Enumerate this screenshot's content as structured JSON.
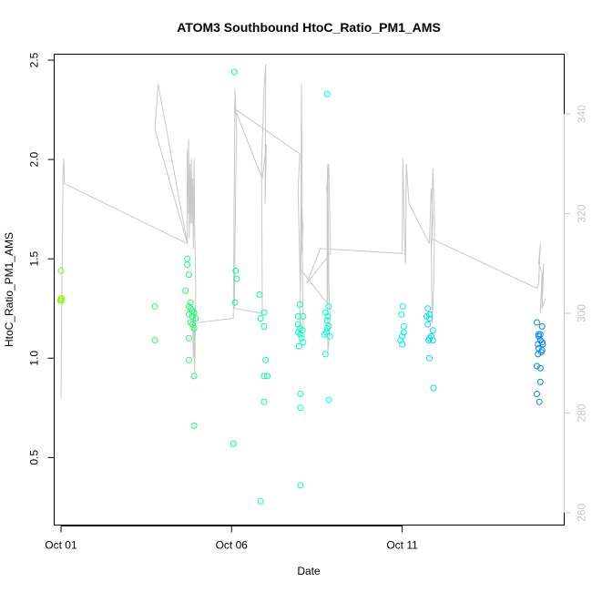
{
  "chart_data": {
    "type": "scatter",
    "title": "ATOM3 Southbound HtoC_Ratio_PM1_AMS",
    "xlabel": "Date",
    "ylabel": "HtoC_Ratio_PM1_AMS",
    "x_ticks": [
      "Oct 01",
      "Oct 06",
      "Oct 11"
    ],
    "x_tick_values": [
      1,
      6,
      11
    ],
    "xlim": [
      0.8,
      15.75
    ],
    "ylim": [
      0.16,
      2.53
    ],
    "y_ticks": [
      "0.5",
      "1.0",
      "1.5",
      "2.0",
      "2.5"
    ],
    "y_tick_values": [
      0.5,
      1.0,
      1.5,
      2.0,
      2.5
    ],
    "y2_ticks": [
      "260",
      "280",
      "300",
      "320",
      "340"
    ],
    "y2_tick_values": [
      260,
      280,
      300,
      320,
      340
    ],
    "y2lim": [
      257.5,
      352
    ],
    "grid": false,
    "point_color_scale": [
      "#80ff00",
      "#00ff80",
      "#00ffff",
      "#0080ff"
    ],
    "line_color": "#c8c8c8",
    "series": [
      {
        "marker": "open-circle",
        "points": [
          [
            1.0,
            1.44
          ],
          [
            1.0,
            1.3
          ],
          [
            1.01,
            1.29
          ],
          [
            0.98,
            1.29
          ],
          [
            1.02,
            1.3
          ],
          [
            3.75,
            1.26
          ],
          [
            3.75,
            1.09
          ],
          [
            4.7,
            1.5
          ],
          [
            4.7,
            1.47
          ],
          [
            4.75,
            1.42
          ],
          [
            4.65,
            1.34
          ],
          [
            4.8,
            1.28
          ],
          [
            4.75,
            1.26
          ],
          [
            4.8,
            1.25
          ],
          [
            4.85,
            1.24
          ],
          [
            4.9,
            1.23
          ],
          [
            4.75,
            1.22
          ],
          [
            4.85,
            1.21
          ],
          [
            4.95,
            1.2
          ],
          [
            4.8,
            1.18
          ],
          [
            4.85,
            1.17
          ],
          [
            4.9,
            1.15
          ],
          [
            4.75,
            1.1
          ],
          [
            4.75,
            0.99
          ],
          [
            4.9,
            0.91
          ],
          [
            4.9,
            0.66
          ],
          [
            6.08,
            2.44
          ],
          [
            6.12,
            1.44
          ],
          [
            6.15,
            1.4
          ],
          [
            6.1,
            1.28
          ],
          [
            6.05,
            0.57
          ],
          [
            6.82,
            1.32
          ],
          [
            6.95,
            1.23
          ],
          [
            6.85,
            1.2
          ],
          [
            6.95,
            1.16
          ],
          [
            7.0,
            0.99
          ],
          [
            6.95,
            0.91
          ],
          [
            7.05,
            0.91
          ],
          [
            6.95,
            0.78
          ],
          [
            6.85,
            0.28
          ],
          [
            8.0,
            1.27
          ],
          [
            7.95,
            1.21
          ],
          [
            8.1,
            1.21
          ],
          [
            7.95,
            1.17
          ],
          [
            8.0,
            1.15
          ],
          [
            8.08,
            1.14
          ],
          [
            7.95,
            1.13
          ],
          [
            8.02,
            1.12
          ],
          [
            8.05,
            1.1
          ],
          [
            8.1,
            1.08
          ],
          [
            7.98,
            1.06
          ],
          [
            8.02,
            0.82
          ],
          [
            8.02,
            0.75
          ],
          [
            8.02,
            0.36
          ],
          [
            8.8,
            2.33
          ],
          [
            8.85,
            1.26
          ],
          [
            8.75,
            1.23
          ],
          [
            8.82,
            1.21
          ],
          [
            8.8,
            1.19
          ],
          [
            8.85,
            1.16
          ],
          [
            8.8,
            1.15
          ],
          [
            8.78,
            1.13
          ],
          [
            8.72,
            1.12
          ],
          [
            8.88,
            1.11
          ],
          [
            8.75,
            1.02
          ],
          [
            8.85,
            0.79
          ],
          [
            11.02,
            1.26
          ],
          [
            10.98,
            1.22
          ],
          [
            11.05,
            1.16
          ],
          [
            11.05,
            1.13
          ],
          [
            11.0,
            1.11
          ],
          [
            10.95,
            1.09
          ],
          [
            11.0,
            1.07
          ],
          [
            11.75,
            1.25
          ],
          [
            11.8,
            1.22
          ],
          [
            11.72,
            1.21
          ],
          [
            11.8,
            1.2
          ],
          [
            11.75,
            1.17
          ],
          [
            11.9,
            1.14
          ],
          [
            11.85,
            1.11
          ],
          [
            11.8,
            1.1
          ],
          [
            11.78,
            1.09
          ],
          [
            11.9,
            1.09
          ],
          [
            11.8,
            1.0
          ],
          [
            11.92,
            0.85
          ],
          [
            14.95,
            1.18
          ],
          [
            15.1,
            1.16
          ],
          [
            15.0,
            1.12
          ],
          [
            15.05,
            1.12
          ],
          [
            15.0,
            1.11
          ],
          [
            15.05,
            1.09
          ],
          [
            15.1,
            1.08
          ],
          [
            14.98,
            1.07
          ],
          [
            15.12,
            1.07
          ],
          [
            15.0,
            1.05
          ],
          [
            15.1,
            1.04
          ],
          [
            15.08,
            1.03
          ],
          [
            14.98,
            1.02
          ],
          [
            14.95,
            0.96
          ],
          [
            15.05,
            0.95
          ],
          [
            15.05,
            0.88
          ],
          [
            14.95,
            0.82
          ],
          [
            15.02,
            0.78
          ]
        ]
      },
      {
        "axis": "right",
        "line": [
          [
            1.0,
            283
          ],
          [
            1.02,
            299
          ],
          [
            1.06,
            328
          ],
          [
            1.08,
            331
          ],
          [
            1.1,
            326
          ],
          [
            4.7,
            314
          ],
          [
            3.75,
            337
          ],
          [
            3.85,
            346
          ],
          [
            4.7,
            314
          ],
          [
            4.7,
            333
          ],
          [
            4.72,
            320
          ],
          [
            4.74,
            335
          ],
          [
            4.76,
            315
          ],
          [
            4.78,
            330
          ],
          [
            4.8,
            318
          ],
          [
            4.82,
            331
          ],
          [
            4.84,
            318
          ],
          [
            4.86,
            327
          ],
          [
            4.88,
            313
          ],
          [
            4.9,
            331
          ],
          [
            4.92,
            316
          ],
          [
            4.95,
            305
          ],
          [
            4.92,
            288
          ],
          [
            4.9,
            301
          ],
          [
            4.88,
            291
          ],
          [
            4.86,
            298
          ],
          [
            6.05,
            299
          ],
          [
            6.1,
            345
          ],
          [
            6.15,
            336
          ],
          [
            6.12,
            327
          ],
          [
            6.08,
            301
          ],
          [
            6.9,
            300
          ],
          [
            6.88,
            330
          ],
          [
            6.92,
            338
          ],
          [
            6.95,
            345
          ],
          [
            7.0,
            350
          ],
          [
            6.98,
            322
          ],
          [
            7.02,
            334
          ],
          [
            6.9,
            327
          ],
          [
            6.1,
            341
          ],
          [
            8.0,
            332
          ],
          [
            7.95,
            325
          ],
          [
            8.0,
            309
          ],
          [
            8.02,
            303
          ],
          [
            8.05,
            346
          ],
          [
            8.08,
            308
          ],
          [
            8.1,
            297
          ],
          [
            8.0,
            296
          ],
          [
            8.05,
            321
          ],
          [
            8.1,
            317
          ],
          [
            8.0,
            309
          ],
          [
            8.8,
            302
          ],
          [
            8.8,
            326
          ],
          [
            8.82,
            330
          ],
          [
            8.85,
            307
          ],
          [
            8.88,
            297
          ],
          [
            8.82,
            292
          ],
          [
            8.82,
            323
          ],
          [
            8.78,
            325
          ],
          [
            8.85,
            328
          ],
          [
            8.85,
            330
          ],
          [
            8.9,
            312
          ],
          [
            8.2,
            306
          ],
          [
            8.6,
            313
          ],
          [
            11.0,
            312
          ],
          [
            11.02,
            331
          ],
          [
            11.05,
            321
          ],
          [
            11.08,
            312
          ],
          [
            11.1,
            310
          ],
          [
            11.12,
            330
          ],
          [
            11.2,
            322
          ],
          [
            11.8,
            314
          ],
          [
            11.85,
            325
          ],
          [
            11.9,
            319
          ],
          [
            11.85,
            312
          ],
          [
            11.9,
            329
          ],
          [
            11.95,
            318
          ],
          [
            11.92,
            305
          ],
          [
            11.88,
            298
          ],
          [
            11.85,
            315
          ],
          [
            14.95,
            305
          ],
          [
            15.0,
            306
          ],
          [
            15.05,
            314
          ],
          [
            15.0,
            310
          ],
          [
            15.1,
            308
          ],
          [
            15.05,
            300
          ],
          [
            15.15,
            310
          ],
          [
            15.1,
            301
          ],
          [
            15.2,
            303
          ]
        ]
      }
    ]
  }
}
